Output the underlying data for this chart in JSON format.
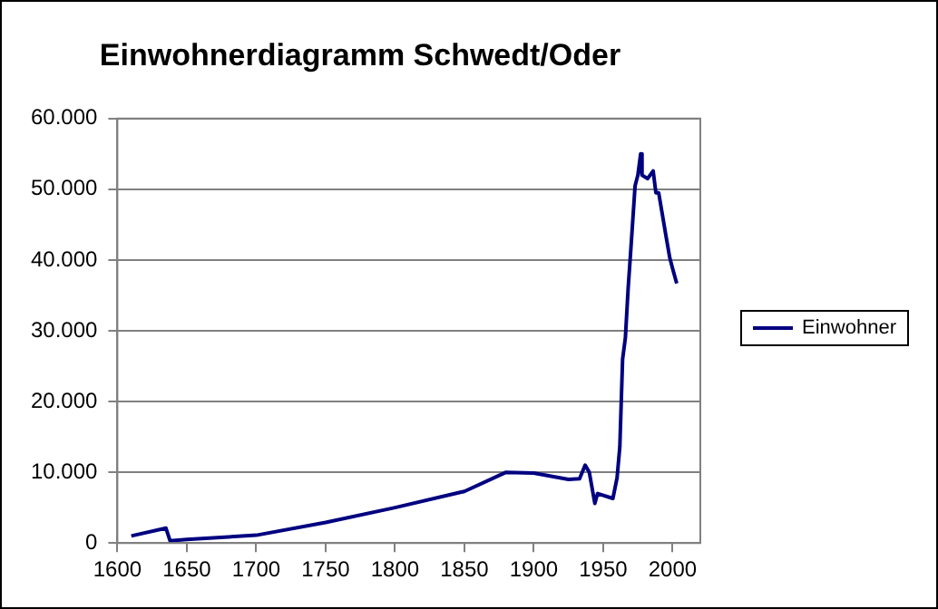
{
  "chart_data": {
    "type": "line",
    "title": "Einwohnerdiagramm Schwedt/Oder",
    "x": [
      1610,
      1635,
      1638,
      1650,
      1700,
      1750,
      1800,
      1850,
      1880,
      1900,
      1925,
      1933,
      1937,
      1940,
      1944,
      1946,
      1957,
      1960,
      1962,
      1964,
      1966,
      1968,
      1970,
      1973,
      1975,
      1977,
      1978,
      1982,
      1986,
      1988,
      1990,
      1995,
      1998,
      2000,
      2003
    ],
    "series": [
      {
        "name": "Einwohner",
        "color": "#000080",
        "values": [
          1000,
          2100,
          300,
          500,
          1100,
          2900,
          5000,
          7300,
          10000,
          9900,
          9000,
          9100,
          11000,
          10000,
          5600,
          7000,
          6300,
          9200,
          13600,
          26000,
          29000,
          36000,
          41700,
          50500,
          52000,
          55000,
          52000,
          51500,
          52600,
          49500,
          49500,
          43700,
          40300,
          38800,
          36700
        ]
      }
    ],
    "xlim": [
      1600,
      2020
    ],
    "xticks": [
      1600,
      1650,
      1700,
      1750,
      1800,
      1850,
      1900,
      1950,
      2000
    ],
    "ylim": [
      0,
      60000
    ],
    "yticks": [
      {
        "value": 0,
        "label": "0"
      },
      {
        "value": 10000,
        "label": "10.000"
      },
      {
        "value": 20000,
        "label": "20.000"
      },
      {
        "value": 30000,
        "label": "30.000"
      },
      {
        "value": 40000,
        "label": "40.000"
      },
      {
        "value": 50000,
        "label": "50.000"
      },
      {
        "value": 60000,
        "label": "60.000"
      }
    ],
    "grid": "y",
    "legend": "right",
    "marker": "none",
    "line_style": "solid"
  }
}
